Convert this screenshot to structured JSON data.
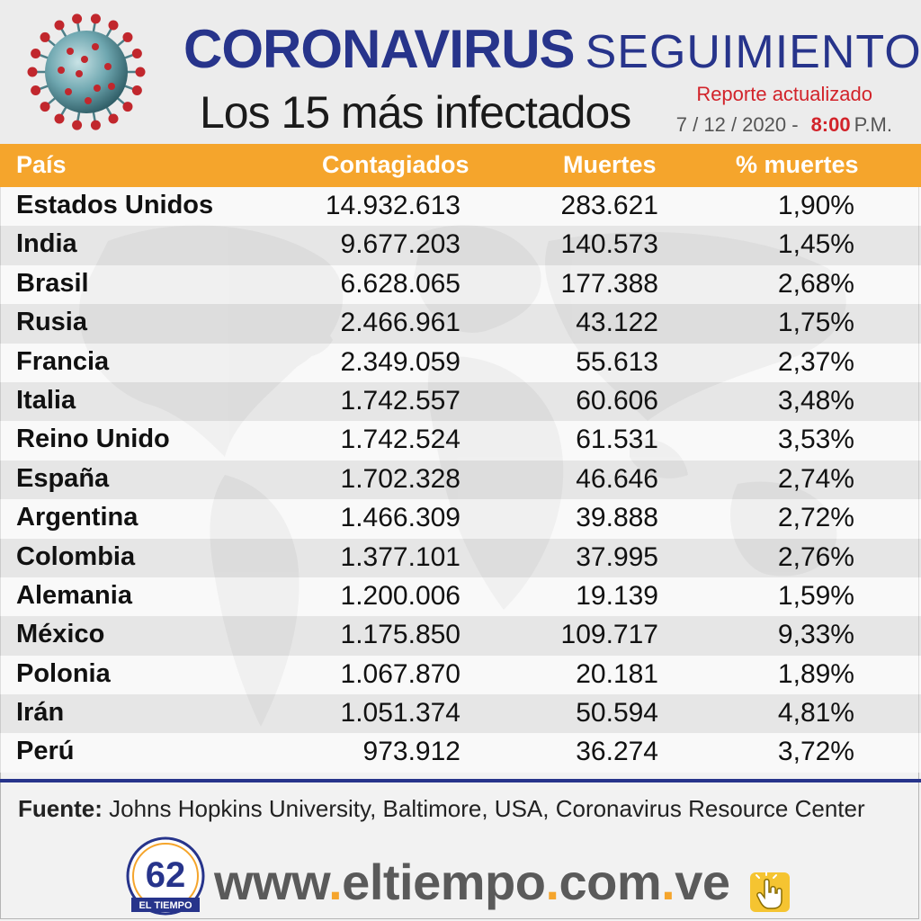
{
  "header": {
    "title_bold": "Coronavirus",
    "title_light": "SEGUIMIENTO",
    "subtitle": "Los 15 más infectados",
    "report_label": "Reporte actualizado",
    "report_date": "7 / 12 / 2020 -",
    "report_time": "8:00",
    "report_time_suffix": "P.M."
  },
  "colors": {
    "title_blue": "#27348b",
    "header_orange": "#f5a52c",
    "accent_red": "#d2232a",
    "virus_teal": "#5f9ea8",
    "virus_red": "#c1272d"
  },
  "icons": {
    "virus": "coronavirus-icon",
    "background": "world-map",
    "cursor": "hand-pointer-icon"
  },
  "chart_data": {
    "type": "table",
    "columns": [
      "País",
      "Contagiados",
      "Muertes",
      "% muertes"
    ],
    "rows": [
      [
        "Estados Unidos",
        "14.932.613",
        "283.621",
        "1,90%"
      ],
      [
        "India",
        "9.677.203",
        "140.573",
        "1,45%"
      ],
      [
        "Brasil",
        "6.628.065",
        "177.388",
        "2,68%"
      ],
      [
        "Rusia",
        "2.466.961",
        "43.122",
        "1,75%"
      ],
      [
        "Francia",
        "2.349.059",
        "55.613",
        "2,37%"
      ],
      [
        "Italia",
        "1.742.557",
        "60.606",
        "3,48%"
      ],
      [
        "Reino Unido",
        "1.742.524",
        "61.531",
        "3,53%"
      ],
      [
        "España",
        "1.702.328",
        "46.646",
        "2,74%"
      ],
      [
        "Argentina",
        "1.466.309",
        "39.888",
        "2,72%"
      ],
      [
        "Colombia",
        "1.377.101",
        "37.995",
        "2,76%"
      ],
      [
        "Alemania",
        "1.200.006",
        "19.139",
        "1,59%"
      ],
      [
        "México",
        "1.175.850",
        "109.717",
        "9,33%"
      ],
      [
        "Polonia",
        "1.067.870",
        "20.181",
        "1,89%"
      ],
      [
        "Irán",
        "1.051.374",
        "50.594",
        "4,81%"
      ],
      [
        "Perú",
        "973.912",
        "36.274",
        "3,72%"
      ]
    ]
  },
  "source": {
    "label": "Fuente:",
    "text": "Johns Hopkins University, Baltimore, USA, Coronavirus Resource Center"
  },
  "footer": {
    "logo_number": "62",
    "logo_text": "EL TIEMPO",
    "website_parts": [
      "www",
      ".",
      "eltiempo",
      ".",
      "com",
      ".",
      "ve"
    ]
  }
}
